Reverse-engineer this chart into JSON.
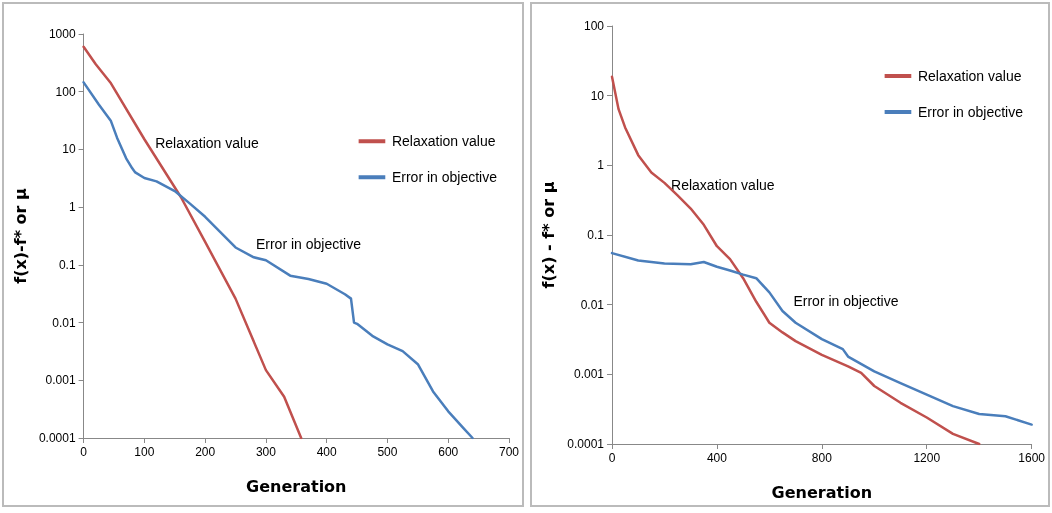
{
  "chart_data": [
    {
      "type": "line",
      "xlabel": "Generation",
      "ylabel": "f(x)-f* or μ",
      "log": "y",
      "xlim": [
        0,
        700
      ],
      "xticks": [
        0,
        100,
        200,
        300,
        400,
        500,
        600,
        700
      ],
      "ylim": [
        0.0001,
        1000
      ],
      "yticks": [
        0.0001,
        0.001,
        0.01,
        0.1,
        1,
        10,
        100,
        1000
      ],
      "grid": false,
      "legend": "right",
      "marker": "none",
      "line_style": "solid",
      "annotations": [
        "Relaxation value",
        "Error in objective"
      ],
      "series": [
        {
          "name": "Relaxation value",
          "color": "#c0504d",
          "x": [
            0,
            20,
            45,
            100,
            160,
            200,
            250,
            300,
            330,
            358
          ],
          "values": [
            600,
            300,
            140,
            15,
            1.5,
            0.25,
            0.026,
            0.0015,
            0.00052,
            0.0001
          ]
        },
        {
          "name": "Error in objective",
          "color": "#4a7ebb",
          "x": [
            0,
            25,
            45,
            55,
            70,
            80,
            85,
            100,
            120,
            150,
            175,
            200,
            225,
            250,
            280,
            300,
            340,
            370,
            400,
            430,
            440,
            445,
            450,
            475,
            500,
            525,
            550,
            575,
            600,
            625,
            640
          ],
          "values": [
            145,
            60,
            31,
            16,
            7,
            4.7,
            4,
            3.2,
            2.8,
            1.9,
            1.15,
            0.68,
            0.37,
            0.2,
            0.135,
            0.12,
            0.065,
            0.057,
            0.047,
            0.031,
            0.026,
            0.01,
            0.0095,
            0.0059,
            0.0042,
            0.0032,
            0.0019,
            0.00064,
            0.00029,
            0.000148,
            0.0001
          ]
        }
      ]
    },
    {
      "type": "line",
      "xlabel": "Generation",
      "ylabel": "f(x) - f* or μ",
      "log": "y",
      "xlim": [
        0,
        1600
      ],
      "xticks": [
        0,
        400,
        800,
        1200,
        1600
      ],
      "ylim": [
        0.0001,
        100
      ],
      "yticks": [
        0.0001,
        0.001,
        0.01,
        0.1,
        1,
        10,
        100
      ],
      "grid": false,
      "legend": "top right",
      "marker": "none",
      "line_style": "solid",
      "annotations": [
        "Relaxation value",
        "Error in objective"
      ],
      "series": [
        {
          "name": "Relaxation value",
          "color": "#c0504d",
          "x": [
            0,
            25,
            50,
            100,
            150,
            200,
            250,
            300,
            350,
            400,
            450,
            500,
            550,
            600,
            650,
            700,
            800,
            900,
            950,
            1000,
            1100,
            1200,
            1300,
            1400
          ],
          "values": [
            18.7,
            6.4,
            3.5,
            1.4,
            0.79,
            0.56,
            0.37,
            0.24,
            0.14,
            0.069,
            0.045,
            0.024,
            0.011,
            0.0055,
            0.004,
            0.003,
            0.0019,
            0.0013,
            0.00105,
            0.00068,
            0.00039,
            0.00024,
            0.00014,
            0.0001
          ]
        },
        {
          "name": "Error in objective",
          "color": "#4a7ebb",
          "x": [
            0,
            100,
            200,
            300,
            350,
            400,
            450,
            500,
            550,
            600,
            650,
            700,
            800,
            880,
            900,
            1000,
            1100,
            1200,
            1300,
            1400,
            1500,
            1600
          ],
          "values": [
            0.055,
            0.043,
            0.039,
            0.038,
            0.041,
            0.035,
            0.031,
            0.027,
            0.024,
            0.015,
            0.0081,
            0.0055,
            0.0032,
            0.0023,
            0.0018,
            0.0011,
            0.00075,
            0.00051,
            0.00035,
            0.00027,
            0.00025,
            0.00019
          ]
        }
      ]
    }
  ]
}
